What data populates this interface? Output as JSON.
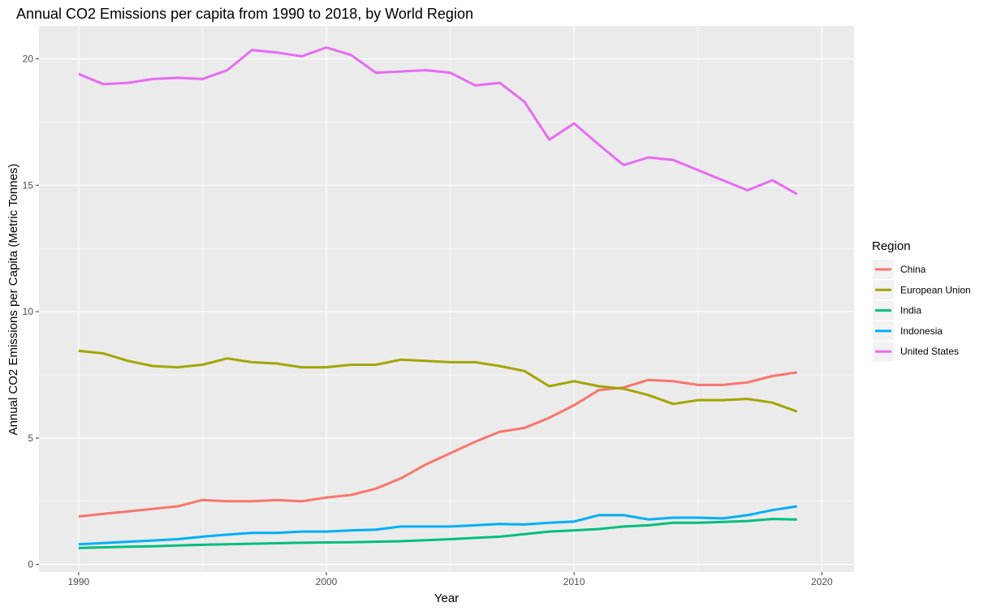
{
  "chart_data": {
    "type": "line",
    "title": "Annual CO2 Emissions per capita from 1990 to 2018, by World Region",
    "xlabel": "Year",
    "ylabel": "Annual CO2 Emissions per Capita (Metric Tonnes)",
    "xlim": [
      1988.4,
      2021.3
    ],
    "ylim": [
      -0.3,
      21.3
    ],
    "x_ticks": [
      1990,
      2000,
      2010,
      2020
    ],
    "y_ticks": [
      0,
      5,
      10,
      15,
      20
    ],
    "grid": true,
    "background": "#ebebeb",
    "legend": {
      "title": "Region",
      "placement": "right"
    },
    "x": [
      1990,
      1991,
      1992,
      1993,
      1994,
      1995,
      1996,
      1997,
      1998,
      1999,
      2000,
      2001,
      2002,
      2003,
      2004,
      2005,
      2006,
      2007,
      2008,
      2009,
      2010,
      2011,
      2012,
      2013,
      2014,
      2015,
      2016,
      2017,
      2018,
      2019
    ],
    "series": [
      {
        "name": "China",
        "color": "#F8766D",
        "values": [
          1.9,
          2.0,
          2.1,
          2.2,
          2.3,
          2.55,
          2.5,
          2.5,
          2.55,
          2.5,
          2.65,
          2.75,
          3.0,
          3.4,
          3.95,
          4.4,
          4.85,
          5.25,
          5.4,
          5.8,
          6.3,
          6.9,
          7.0,
          7.3,
          7.25,
          7.1,
          7.1,
          7.2,
          7.45,
          7.6
        ]
      },
      {
        "name": "European Union",
        "color": "#A3A500",
        "values": [
          8.45,
          8.35,
          8.05,
          7.85,
          7.8,
          7.9,
          8.15,
          8.0,
          7.95,
          7.8,
          7.8,
          7.9,
          7.9,
          8.1,
          8.05,
          8.0,
          8.0,
          7.85,
          7.65,
          7.05,
          7.25,
          7.05,
          6.95,
          6.7,
          6.35,
          6.5,
          6.5,
          6.55,
          6.4,
          6.05
        ]
      },
      {
        "name": "India",
        "color": "#00BF7D",
        "values": [
          0.65,
          0.68,
          0.7,
          0.72,
          0.75,
          0.78,
          0.8,
          0.82,
          0.84,
          0.86,
          0.87,
          0.88,
          0.9,
          0.92,
          0.96,
          1.0,
          1.05,
          1.1,
          1.2,
          1.3,
          1.35,
          1.4,
          1.5,
          1.55,
          1.65,
          1.65,
          1.68,
          1.72,
          1.8,
          1.78
        ]
      },
      {
        "name": "Indonesia",
        "color": "#00B0F6",
        "values": [
          0.8,
          0.85,
          0.9,
          0.95,
          1.0,
          1.1,
          1.18,
          1.25,
          1.25,
          1.3,
          1.3,
          1.35,
          1.38,
          1.5,
          1.5,
          1.5,
          1.55,
          1.6,
          1.58,
          1.65,
          1.7,
          1.95,
          1.95,
          1.78,
          1.85,
          1.85,
          1.82,
          1.95,
          2.15,
          2.3
        ]
      },
      {
        "name": "United States",
        "color": "#E76BF3",
        "values": [
          19.4,
          19.0,
          19.05,
          19.2,
          19.25,
          19.2,
          19.55,
          20.35,
          20.25,
          20.1,
          20.45,
          20.15,
          19.45,
          19.5,
          19.55,
          19.45,
          18.95,
          19.05,
          18.3,
          16.8,
          17.45,
          16.6,
          15.8,
          16.1,
          16.0,
          15.6,
          15.2,
          14.8,
          15.2,
          14.65
        ]
      }
    ]
  }
}
